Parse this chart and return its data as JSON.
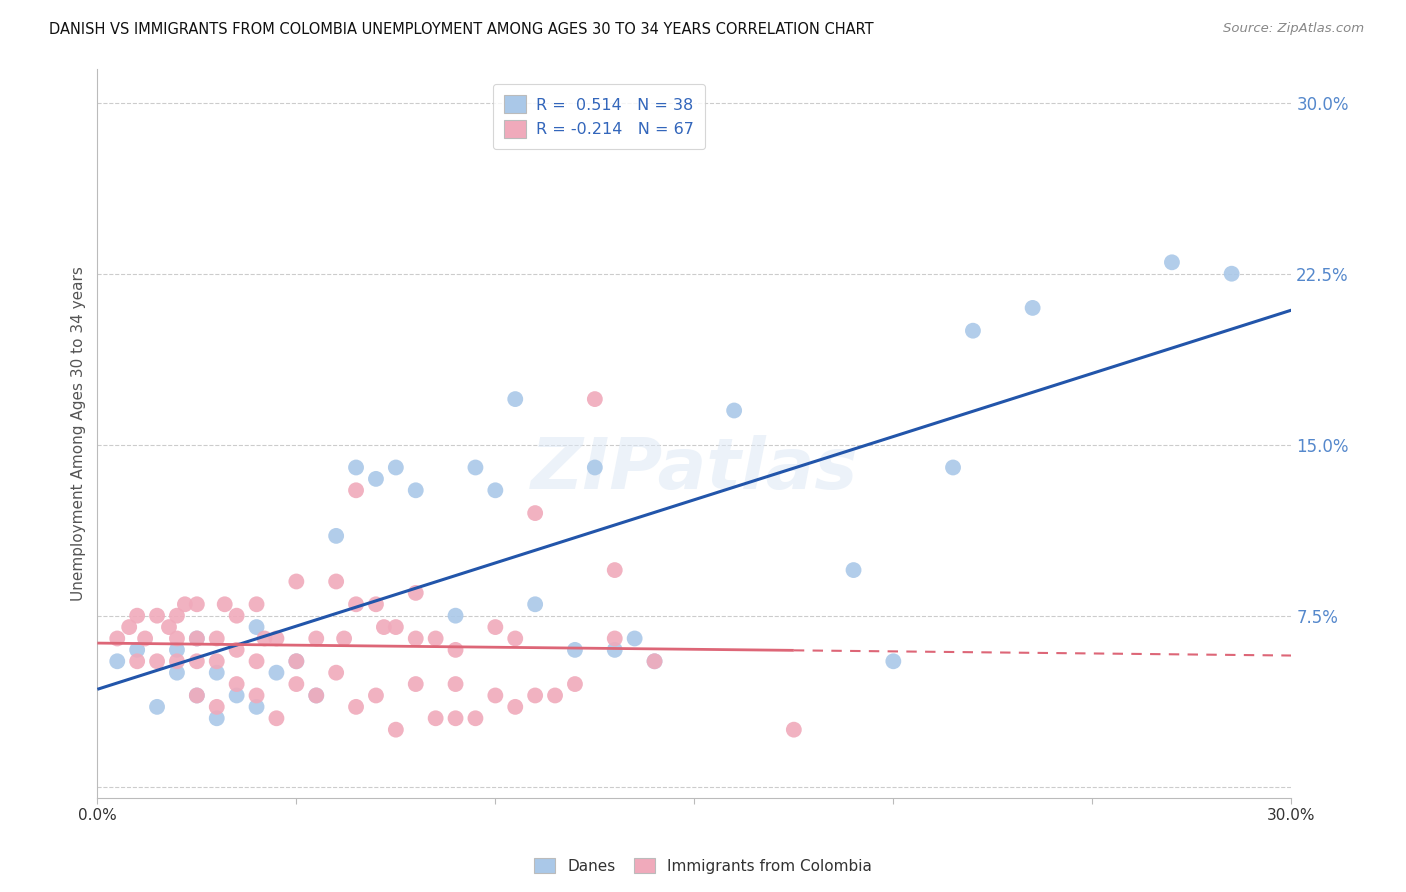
{
  "title": "DANISH VS IMMIGRANTS FROM COLOMBIA UNEMPLOYMENT AMONG AGES 30 TO 34 YEARS CORRELATION CHART",
  "source": "Source: ZipAtlas.com",
  "ylabel": "Unemployment Among Ages 30 to 34 years",
  "xlim": [
    0.0,
    0.3
  ],
  "ylim": [
    -0.005,
    0.315
  ],
  "yticks": [
    0.0,
    0.075,
    0.15,
    0.225,
    0.3
  ],
  "ytick_labels": [
    "",
    "7.5%",
    "15.0%",
    "22.5%",
    "30.0%"
  ],
  "danes_color": "#aac8e8",
  "colombia_color": "#f0aabb",
  "danes_line_color": "#2255aa",
  "colombia_line_color": "#dd6677",
  "watermark": "ZIPatlas",
  "danes_x": [
    0.005,
    0.01,
    0.015,
    0.02,
    0.02,
    0.025,
    0.025,
    0.03,
    0.03,
    0.035,
    0.04,
    0.04,
    0.045,
    0.05,
    0.055,
    0.06,
    0.065,
    0.07,
    0.075,
    0.08,
    0.09,
    0.095,
    0.1,
    0.105,
    0.11,
    0.12,
    0.125,
    0.13,
    0.135,
    0.14,
    0.16,
    0.19,
    0.2,
    0.215,
    0.22,
    0.235,
    0.27,
    0.285
  ],
  "danes_y": [
    0.055,
    0.06,
    0.035,
    0.06,
    0.05,
    0.04,
    0.065,
    0.03,
    0.05,
    0.04,
    0.035,
    0.07,
    0.05,
    0.055,
    0.04,
    0.11,
    0.14,
    0.135,
    0.14,
    0.13,
    0.075,
    0.14,
    0.13,
    0.17,
    0.08,
    0.06,
    0.14,
    0.06,
    0.065,
    0.055,
    0.165,
    0.095,
    0.055,
    0.14,
    0.2,
    0.21,
    0.23,
    0.225
  ],
  "colombia_x": [
    0.005,
    0.008,
    0.01,
    0.01,
    0.012,
    0.015,
    0.015,
    0.018,
    0.02,
    0.02,
    0.02,
    0.022,
    0.025,
    0.025,
    0.025,
    0.025,
    0.03,
    0.03,
    0.03,
    0.032,
    0.035,
    0.035,
    0.035,
    0.04,
    0.04,
    0.04,
    0.042,
    0.045,
    0.045,
    0.05,
    0.05,
    0.05,
    0.055,
    0.055,
    0.06,
    0.06,
    0.062,
    0.065,
    0.065,
    0.065,
    0.07,
    0.07,
    0.072,
    0.075,
    0.075,
    0.08,
    0.08,
    0.08,
    0.085,
    0.085,
    0.09,
    0.09,
    0.09,
    0.095,
    0.1,
    0.1,
    0.105,
    0.105,
    0.11,
    0.11,
    0.115,
    0.12,
    0.125,
    0.13,
    0.13,
    0.14,
    0.175
  ],
  "colombia_y": [
    0.065,
    0.07,
    0.055,
    0.075,
    0.065,
    0.055,
    0.075,
    0.07,
    0.055,
    0.065,
    0.075,
    0.08,
    0.04,
    0.055,
    0.065,
    0.08,
    0.035,
    0.055,
    0.065,
    0.08,
    0.045,
    0.06,
    0.075,
    0.04,
    0.055,
    0.08,
    0.065,
    0.03,
    0.065,
    0.045,
    0.055,
    0.09,
    0.04,
    0.065,
    0.05,
    0.09,
    0.065,
    0.08,
    0.13,
    0.035,
    0.04,
    0.08,
    0.07,
    0.025,
    0.07,
    0.045,
    0.065,
    0.085,
    0.03,
    0.065,
    0.03,
    0.045,
    0.06,
    0.03,
    0.04,
    0.07,
    0.035,
    0.065,
    0.04,
    0.12,
    0.04,
    0.045,
    0.17,
    0.065,
    0.095,
    0.055,
    0.025
  ]
}
